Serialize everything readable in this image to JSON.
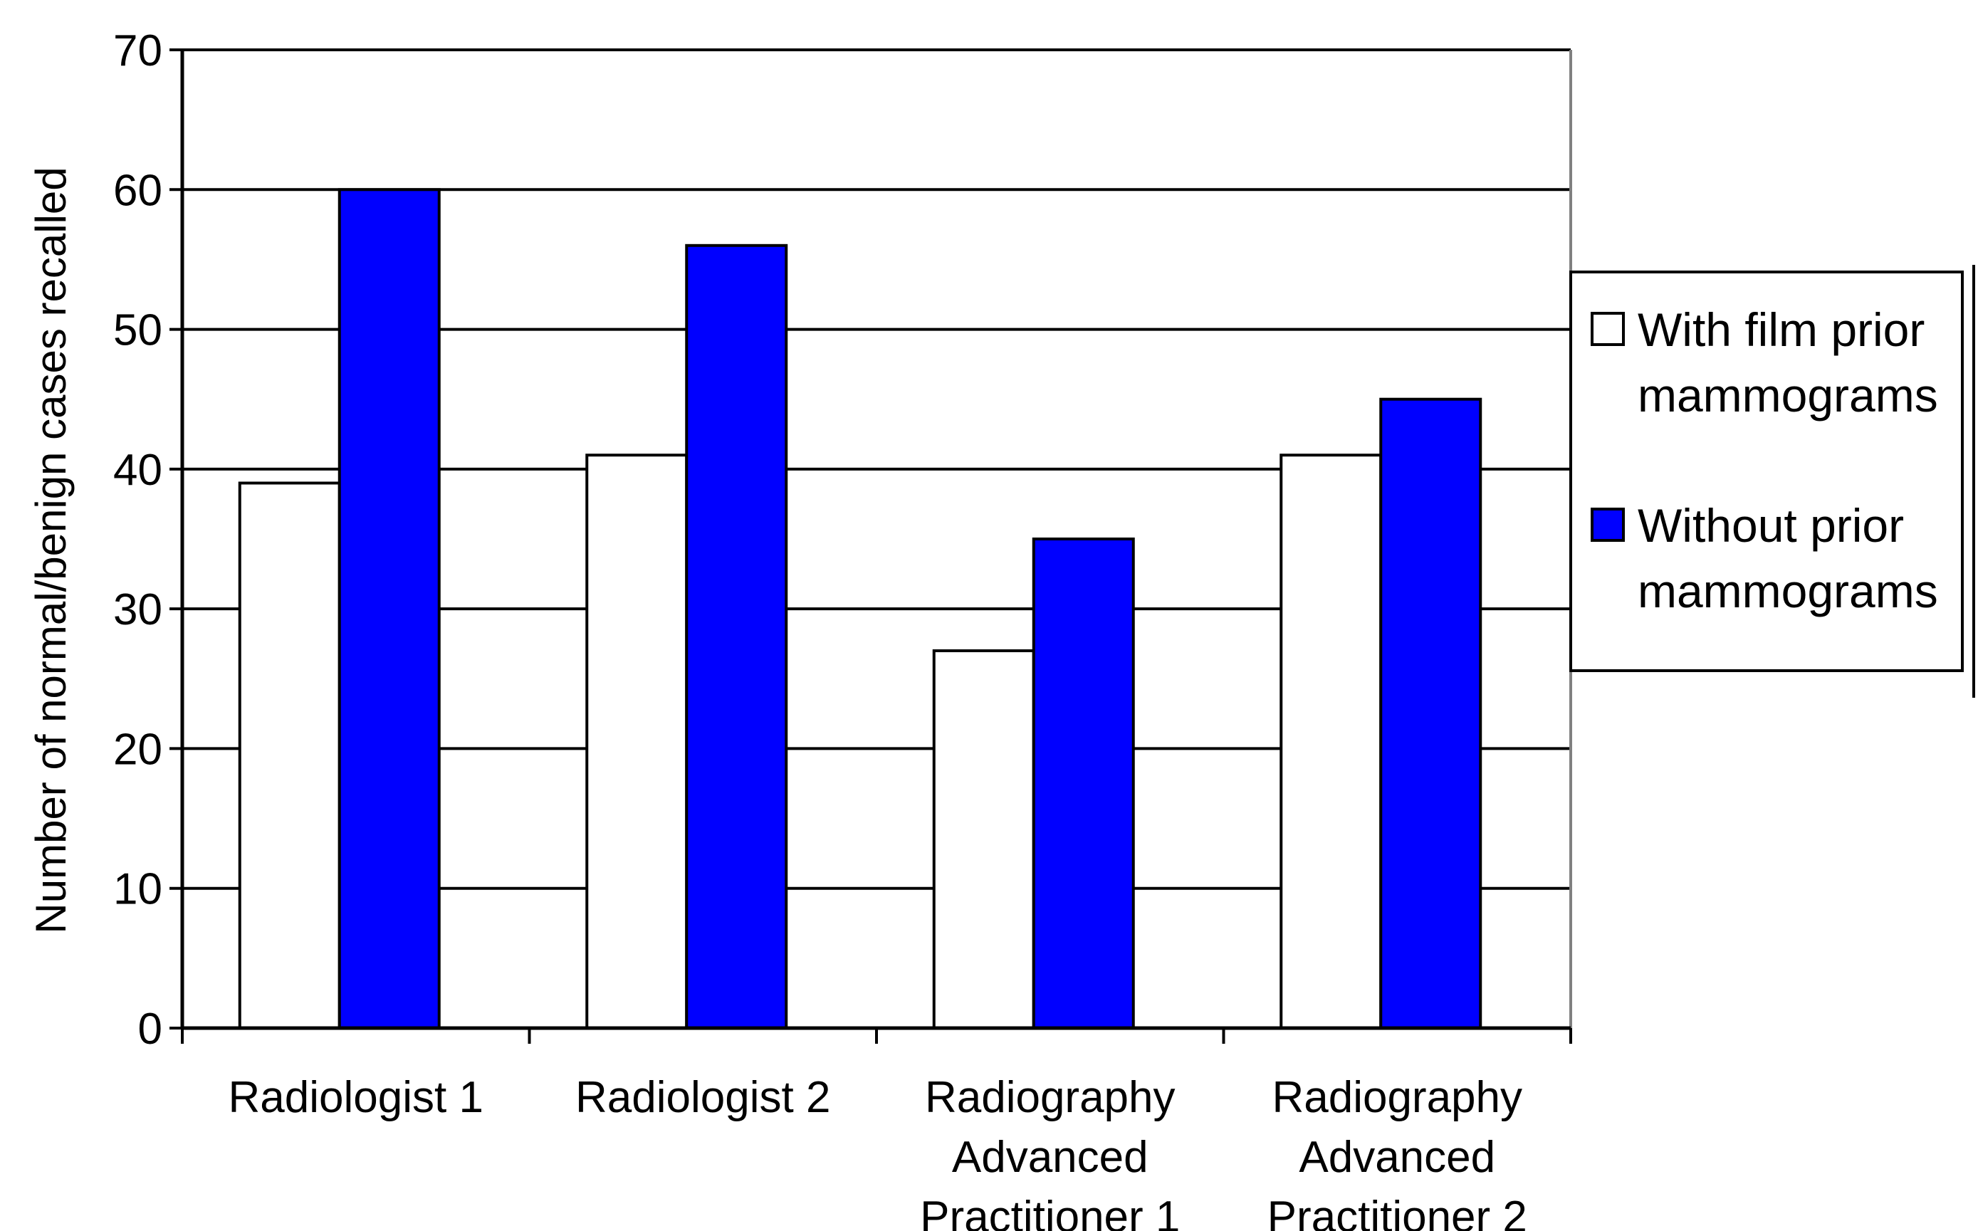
{
  "chart_data": {
    "type": "bar",
    "title": "",
    "xlabel": "",
    "ylabel": "Number of normal/benign cases recalled",
    "ylim": [
      0,
      70
    ],
    "yticks": [
      0,
      10,
      20,
      30,
      40,
      50,
      60,
      70
    ],
    "grid": true,
    "legend_position": "right",
    "categories": [
      [
        "Radiologist 1"
      ],
      [
        "Radiologist 2"
      ],
      [
        "Radiography",
        "Advanced",
        "Practitioner 1"
      ],
      [
        "Radiography",
        "Advanced",
        "Practitioner 2"
      ]
    ],
    "series": [
      {
        "name": "With film prior mammograms",
        "legend_lines": [
          "With film prior",
          "mammograms"
        ],
        "color": "#ffffff",
        "values": [
          39,
          41,
          27,
          41
        ]
      },
      {
        "name": "Without prior mammograms",
        "legend_lines": [
          "Without prior",
          "mammograms"
        ],
        "color": "#0000ff",
        "values": [
          60,
          56,
          35,
          45
        ]
      }
    ]
  }
}
